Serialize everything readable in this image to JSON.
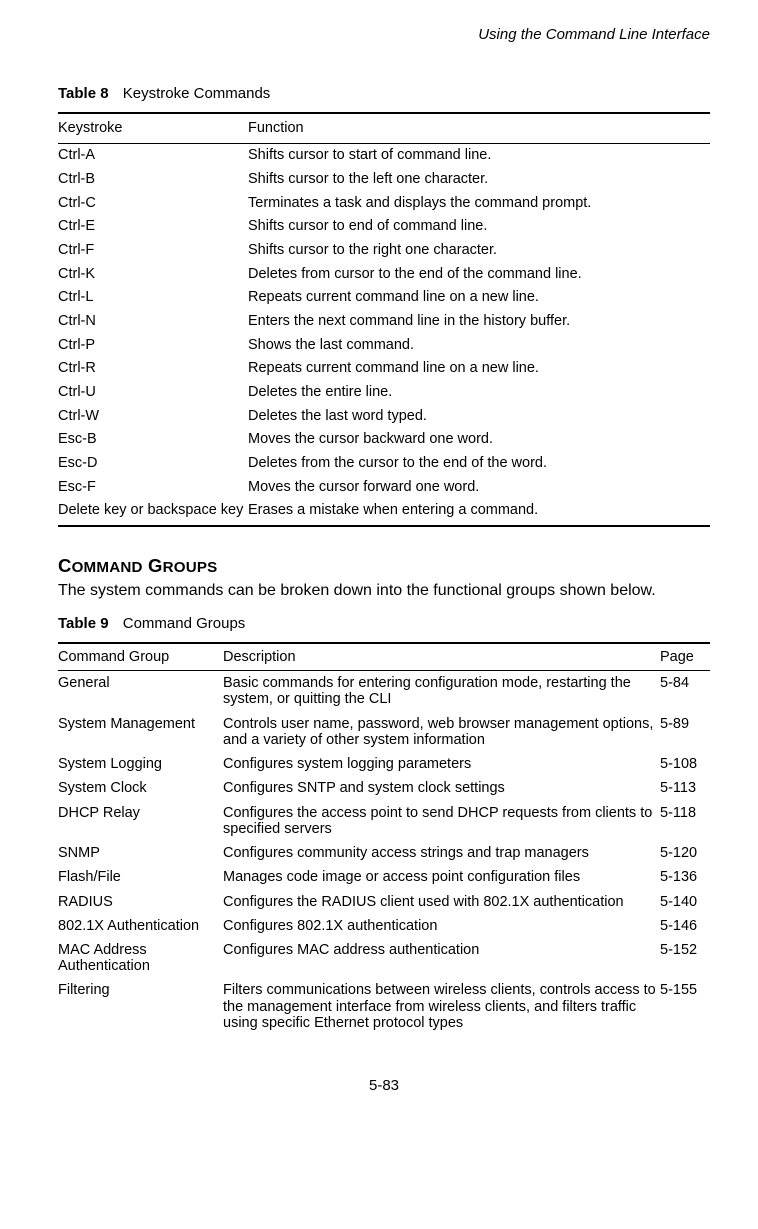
{
  "running_head": "Using the Command Line Interface",
  "table8": {
    "label": "Table 8",
    "title": "Keystroke Commands",
    "columns": [
      "Keystroke",
      "Function"
    ],
    "rows": [
      [
        "Ctrl-A",
        "Shifts cursor to start of command line."
      ],
      [
        "Ctrl-B",
        "Shifts cursor to the left one character."
      ],
      [
        "Ctrl-C",
        "Terminates a task and displays the command prompt."
      ],
      [
        "Ctrl-E",
        "Shifts cursor to end of command line."
      ],
      [
        "Ctrl-F",
        "Shifts cursor to the right one character."
      ],
      [
        "Ctrl-K",
        "Deletes from cursor to the end of the command line."
      ],
      [
        "Ctrl-L",
        "Repeats current command line on a new line."
      ],
      [
        "Ctrl-N",
        "Enters the next command line in the history buffer."
      ],
      [
        "Ctrl-P",
        "Shows the last command."
      ],
      [
        "Ctrl-R",
        "Repeats current command line on a new line."
      ],
      [
        "Ctrl-U",
        "Deletes the entire line."
      ],
      [
        "Ctrl-W",
        "Deletes the last word typed."
      ],
      [
        "Esc-B",
        "Moves the cursor backward one word."
      ],
      [
        "Esc-D",
        "Deletes from the cursor to the end of the word."
      ],
      [
        "Esc-F",
        "Moves the cursor forward one word."
      ],
      [
        "Delete key or backspace key",
        "Erases a mistake when entering a command."
      ]
    ]
  },
  "section_heading": {
    "first": "C",
    "rest1": "OMMAND",
    "space": " ",
    "first2": "G",
    "rest2": "ROUPS"
  },
  "section_body": "The system commands can be broken down into the functional groups shown below.",
  "table9": {
    "label": "Table 9",
    "title": "Command Groups",
    "columns": [
      "Command Group",
      "Description",
      "Page"
    ],
    "rows": [
      [
        "General",
        "Basic commands for entering configuration mode, restarting the system, or quitting the CLI",
        "5-84"
      ],
      [
        "System Management",
        "Controls user name, password, web browser management options, and a variety of other system information",
        "5-89"
      ],
      [
        "System Logging",
        "Configures system logging parameters",
        "5-108"
      ],
      [
        "System Clock",
        "Configures SNTP and system clock settings",
        "5-113"
      ],
      [
        "DHCP Relay",
        "Configures the access point to send DHCP requests from clients to specified servers",
        "5-118"
      ],
      [
        "SNMP",
        "Configures community access strings and trap managers",
        "5-120"
      ],
      [
        "Flash/File",
        "Manages code image or access point configuration files",
        "5-136"
      ],
      [
        "RADIUS",
        "Configures the RADIUS client used with 802.1X authentication",
        "5-140"
      ],
      [
        "802.1X Authentication",
        "Configures 802.1X authentication",
        "5-146"
      ],
      [
        "MAC Address Authentication",
        "Configures MAC address authentication",
        "5-152"
      ],
      [
        "Filtering",
        "Filters communications between wireless clients, controls access to the management interface from wireless clients, and filters traffic using specific Ethernet protocol types",
        "5-155"
      ]
    ]
  },
  "page_number": "5-83"
}
